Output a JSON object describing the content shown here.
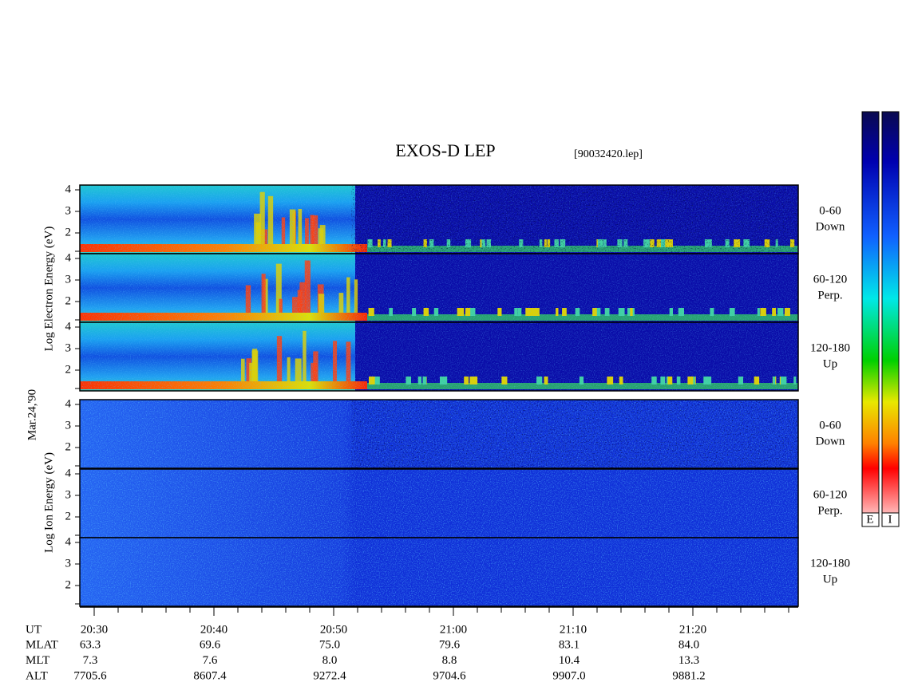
{
  "title": "EXOS-D LEP",
  "file": "[90032420.lep]",
  "electron_axis_label": "Log Electron Energy (eV)",
  "ion_axis_label": "Log Ion Energy (eV)",
  "date": "Mar.24,'90",
  "yticks": [
    "4",
    "3",
    "2"
  ],
  "panels": [
    {
      "range": "0-60",
      "direction": "Down"
    },
    {
      "range": "60-120",
      "direction": "Perp."
    },
    {
      "range": "120-180",
      "direction": "Up"
    },
    {
      "range": "0-60",
      "direction": "Down"
    },
    {
      "range": "60-120",
      "direction": "Perp."
    },
    {
      "range": "120-180",
      "direction": "Up"
    }
  ],
  "table": {
    "rows": [
      [
        "UT",
        "20:30",
        "20:40",
        "20:50",
        "21:00",
        "21:10",
        "21:20"
      ],
      [
        "MLAT",
        "63.3",
        "69.6",
        "75.0",
        "79.6",
        "83.1",
        "84.0"
      ],
      [
        "MLT",
        "7.3",
        "7.6",
        "8.0",
        "8.8",
        "10.4",
        "13.3"
      ],
      [
        "ALT",
        "7705.6",
        "8607.4",
        "9272.4",
        "9704.6",
        "9907.0",
        "9881.2"
      ]
    ]
  },
  "colorbars": [
    "E",
    "I"
  ]
}
